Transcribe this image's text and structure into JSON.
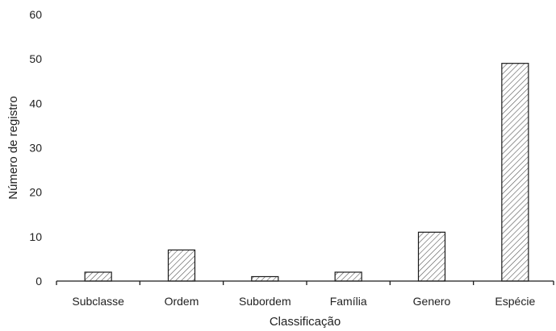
{
  "chart_data": {
    "type": "bar",
    "title": "",
    "xlabel": "Classificação",
    "ylabel": "Número de registro",
    "categories": [
      "Subclasse",
      "Ordem",
      "Subordem",
      "Família",
      "Genero",
      "Espécie"
    ],
    "values": [
      2,
      7,
      1,
      2,
      11,
      49
    ],
    "ylim": [
      0,
      60
    ],
    "yticks": [
      0,
      10,
      20,
      30,
      40,
      50,
      60
    ],
    "grid": false,
    "legend": "none",
    "bar_fill": "diagonal-hatch",
    "bar_color": "#1a1a1a"
  }
}
